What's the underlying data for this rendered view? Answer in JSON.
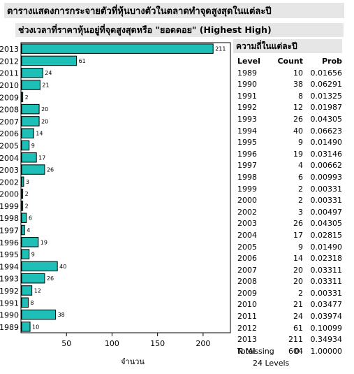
{
  "main_title": "ตารางแสดงการกระจายตัวที่หุ้นบางตัวในตลาดทำจุดสูงสุดในแต่ละปี",
  "chart_title": "ช่วงเวลาที่ราคาหุ้นอยู่ที่จุดสูงสุดหรือ \"ยอดดอย\" (Highest High)",
  "frequency_title": "ความถี่ในแต่ละปี",
  "table": {
    "headers": [
      "Level",
      "Count",
      "Prob"
    ],
    "rows": [
      [
        "1989",
        "10",
        "0.01656"
      ],
      [
        "1990",
        "38",
        "0.06291"
      ],
      [
        "1991",
        "8",
        "0.01325"
      ],
      [
        "1992",
        "12",
        "0.01987"
      ],
      [
        "1993",
        "26",
        "0.04305"
      ],
      [
        "1994",
        "40",
        "0.06623"
      ],
      [
        "1995",
        "9",
        "0.01490"
      ],
      [
        "1996",
        "19",
        "0.03146"
      ],
      [
        "1997",
        "4",
        "0.00662"
      ],
      [
        "1998",
        "6",
        "0.00993"
      ],
      [
        "1999",
        "2",
        "0.00331"
      ],
      [
        "2000",
        "2",
        "0.00331"
      ],
      [
        "2002",
        "3",
        "0.00497"
      ],
      [
        "2003",
        "26",
        "0.04305"
      ],
      [
        "2004",
        "17",
        "0.02815"
      ],
      [
        "2005",
        "9",
        "0.01490"
      ],
      [
        "2006",
        "14",
        "0.02318"
      ],
      [
        "2007",
        "20",
        "0.03311"
      ],
      [
        "2008",
        "20",
        "0.03311"
      ],
      [
        "2009",
        "2",
        "0.00331"
      ],
      [
        "2010",
        "21",
        "0.03477"
      ],
      [
        "2011",
        "24",
        "0.03974"
      ],
      [
        "2012",
        "61",
        "0.10099"
      ],
      [
        "2013",
        "211",
        "0.34934"
      ]
    ],
    "total": [
      "Total",
      "604",
      "1.00000"
    ],
    "n_missing_label": "N Missing",
    "n_missing_value": "0",
    "levels_text": "24  Levels"
  },
  "chart_data": {
    "type": "bar",
    "orientation": "horizontal",
    "categories": [
      "2013",
      "2012",
      "2011",
      "2010",
      "2009",
      "2008",
      "2007",
      "2006",
      "2005",
      "2004",
      "2003",
      "2002",
      "2000",
      "1999",
      "1998",
      "1997",
      "1996",
      "1995",
      "1994",
      "1993",
      "1992",
      "1991",
      "1990",
      "1989"
    ],
    "values": [
      211,
      61,
      24,
      21,
      2,
      20,
      20,
      14,
      9,
      17,
      26,
      3,
      2,
      2,
      6,
      4,
      19,
      9,
      40,
      26,
      12,
      8,
      38,
      10
    ],
    "xlabel": "จำนวน",
    "ylabel": "",
    "xlim": [
      0,
      230
    ],
    "xticks": [
      50,
      100,
      150,
      200
    ],
    "bar_color": "#1ebfb6",
    "grid": false
  }
}
